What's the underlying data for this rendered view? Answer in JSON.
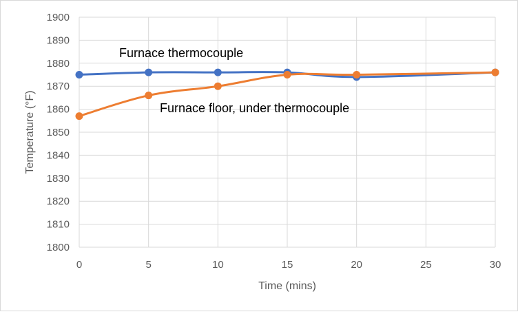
{
  "chart_data": {
    "type": "line",
    "title": "",
    "xlabel": "Time (mins)",
    "ylabel": "Temperature (°F)",
    "xlim": [
      0,
      30
    ],
    "ylim": [
      1800,
      1900
    ],
    "x_ticks": [
      0,
      5,
      10,
      15,
      20,
      25,
      30
    ],
    "y_ticks": [
      1800,
      1810,
      1820,
      1830,
      1840,
      1850,
      1860,
      1870,
      1880,
      1890,
      1900
    ],
    "grid": true,
    "legend": "none (series labeled directly on chart)",
    "series": [
      {
        "name": "Furnace thermocouple",
        "color": "#4472C4",
        "x": [
          0,
          5,
          10,
          15,
          20,
          30
        ],
        "values": [
          1875,
          1876,
          1876,
          1876,
          1874,
          1876
        ]
      },
      {
        "name": "Furnace floor, under thermocouple",
        "color": "#ED7D31",
        "x": [
          0,
          5,
          10,
          15,
          20,
          30
        ],
        "values": [
          1857,
          1866,
          1870,
          1875,
          1875,
          1876
        ]
      }
    ]
  }
}
